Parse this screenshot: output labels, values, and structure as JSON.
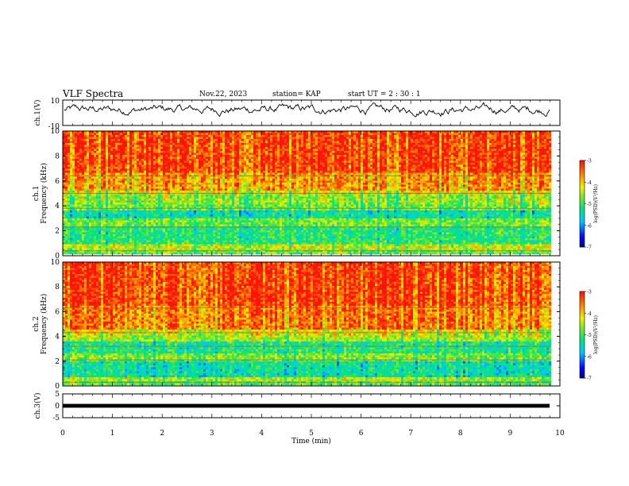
{
  "header": {
    "title": "VLF Spectra",
    "date": "Nov.22, 2023",
    "station": "station= KAP",
    "start": "start UT =  2 : 30 : 1"
  },
  "chart_data": [
    {
      "type": "line",
      "panel": "ch1-waveform",
      "ylabel": "ch.1(V)",
      "ylim": [
        -10,
        10
      ],
      "yticks": [
        "10",
        "-10"
      ],
      "xlim": [
        0,
        10
      ],
      "xlabel": "",
      "series": [
        {
          "color": "#000000",
          "amplitude_range": [
            -5,
            8
          ]
        }
      ]
    },
    {
      "type": "heatmap",
      "panel": "ch1-spectrogram",
      "ylabel_top": "ch.1",
      "ylabel": "Frequency (kHz)",
      "ylim": [
        0,
        10
      ],
      "yticks": [
        "0",
        "2",
        "4",
        "6",
        "8",
        "10"
      ],
      "xlim": [
        0,
        9.83
      ],
      "colorbar": {
        "label": "log(PSD)(V²/Hz)",
        "range": [
          -7,
          -3
        ],
        "ticks": [
          "-3",
          "-4",
          "-5",
          "-6",
          "-7"
        ]
      }
    },
    {
      "type": "heatmap",
      "panel": "ch2-spectrogram",
      "ylabel_top": "ch.2",
      "ylabel": "Frequency (kHz)",
      "ylim": [
        0,
        10
      ],
      "yticks": [
        "0",
        "2",
        "4",
        "6",
        "8",
        "10"
      ],
      "xlim": [
        0,
        9.83
      ],
      "colorbar": {
        "label": "log(PSD)(V²/Hz)",
        "range": [
          -7,
          -3
        ],
        "ticks": [
          "-3",
          "-4",
          "-5",
          "-6",
          "-7"
        ]
      }
    },
    {
      "type": "line",
      "panel": "ch3-waveform",
      "ylabel": "ch.3(V)",
      "ylim": [
        -5,
        5
      ],
      "yticks": [
        "5",
        "0",
        "-5"
      ],
      "xlim": [
        0,
        10
      ],
      "xlabel": "Time (min)",
      "xticks": [
        "0",
        "1",
        "2",
        "3",
        "4",
        "5",
        "6",
        "7",
        "8",
        "9",
        "10"
      ],
      "series": [
        {
          "color": "#000000",
          "value_range": [
            -0.8,
            0.8
          ]
        }
      ]
    }
  ]
}
